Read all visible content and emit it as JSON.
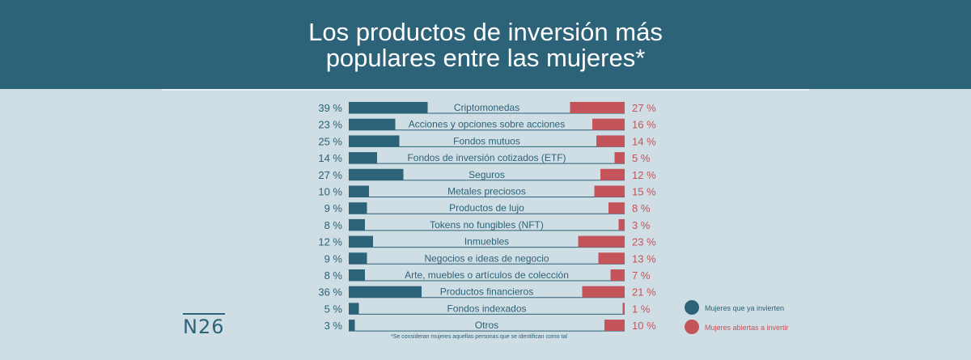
{
  "title_line1": "Los productos de inversión más",
  "title_line2": "populares entre las mujeres*",
  "logo": "N26",
  "footnote": "*Se consideran mujeres aquellas personas que se identifican como tal",
  "legend": {
    "investing": "Mujeres que ya invierten",
    "open": "Mujeres abiertas a invertir"
  },
  "colors": {
    "header": "#2c6378",
    "background": "#cfdde4",
    "investing": "#2c6378",
    "open": "#c4545a"
  },
  "chart_data": {
    "type": "bar",
    "title": "Los productos de inversión más populares entre las mujeres*",
    "categories": [
      "Criptomonedas",
      "Acciones y opciones sobre acciones",
      "Fondos mutuos",
      "Fondos de inversión cotizados (ETF)",
      "Seguros",
      "Metales preciosos",
      "Productos de lujo",
      "Tokens no fungibles (NFT)",
      "Inmuebles",
      "Negocios e ideas de negocio",
      "Arte, muebles o artículos de colección",
      "Productos financieros",
      "Fondos indexados",
      "Otros"
    ],
    "series": [
      {
        "name": "Mujeres que ya invierten",
        "values": [
          39,
          23,
          25,
          14,
          27,
          10,
          9,
          8,
          12,
          9,
          8,
          36,
          5,
          3
        ]
      },
      {
        "name": "Mujeres abiertas a invertir",
        "values": [
          27,
          16,
          14,
          5,
          12,
          15,
          8,
          3,
          23,
          13,
          7,
          21,
          1,
          10
        ]
      }
    ],
    "labels_left": [
      "39 %",
      "23 %",
      "25 %",
      "14 %",
      "27 %",
      "10 %",
      "9 %",
      "8 %",
      "12 %",
      "9 %",
      "8 %",
      "36 %",
      "5 %",
      "3 %"
    ],
    "labels_right": [
      "27 %",
      "16 %",
      "14 %",
      "5 %",
      "12 %",
      "15 %",
      "8 %",
      "3 %",
      "23 %",
      "13 %",
      "7 %",
      "21 %",
      "1 %",
      "10 %"
    ],
    "legend_position": "right"
  }
}
